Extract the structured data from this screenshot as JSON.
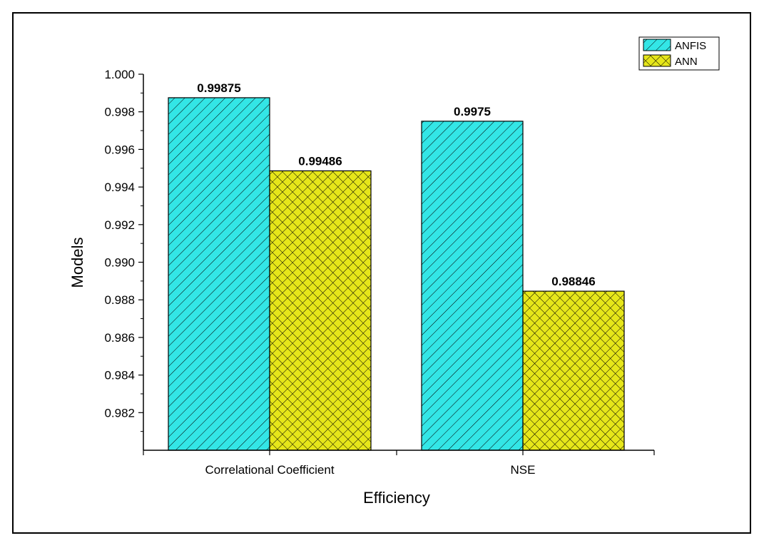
{
  "chart_data": {
    "type": "bar",
    "categories": [
      "Correlational Coefficient",
      "NSE"
    ],
    "series": [
      {
        "name": "ANFIS",
        "values": [
          0.99875,
          0.9975
        ],
        "labels": [
          "0.99875",
          "0.9975"
        ],
        "color": "#33e6e6",
        "pattern": "diagonal-hatch"
      },
      {
        "name": "ANN",
        "values": [
          0.99486,
          0.98846
        ],
        "labels": [
          "0.99486",
          "0.98846"
        ],
        "color": "#e6e61a",
        "pattern": "crosshatch"
      }
    ],
    "xlabel": "Efficiency",
    "ylabel": "Models",
    "ylim": [
      0.98,
      1.0
    ],
    "yticks": [
      "0.982",
      "0.984",
      "0.986",
      "0.988",
      "0.990",
      "0.992",
      "0.994",
      "0.996",
      "0.998",
      "1.000"
    ],
    "legend_position": "top-right",
    "grid": false
  }
}
